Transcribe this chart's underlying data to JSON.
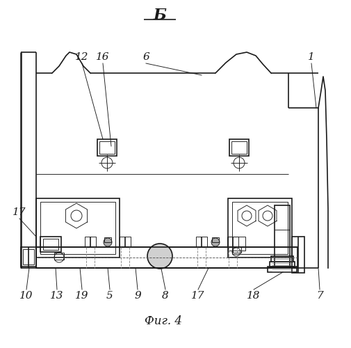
{
  "bg_color": "#ffffff",
  "line_color": "#1a1a1a",
  "title": "Б",
  "fig_label": "Фиг. 4",
  "lw_main": 1.2,
  "lw_thin": 0.65,
  "lw_thick": 1.8
}
